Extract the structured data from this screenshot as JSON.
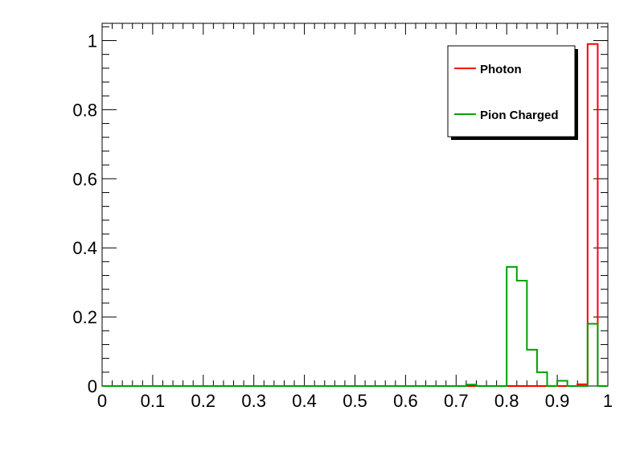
{
  "chart_data": {
    "type": "histogram",
    "bin_width": 0.02,
    "xlim": [
      0,
      1
    ],
    "ylim": [
      0,
      1.05
    ],
    "x_ticks": [
      "0",
      "0.1",
      "0.2",
      "0.3",
      "0.4",
      "0.5",
      "0.6",
      "0.7",
      "0.8",
      "0.9",
      "1"
    ],
    "y_ticks": [
      "0",
      "0.2",
      "0.4",
      "0.6",
      "0.8",
      "1"
    ],
    "grid": false,
    "legend_position": "top-right",
    "series": [
      {
        "name": "Photon",
        "color": "#ff0000",
        "values": [
          0,
          0,
          0,
          0,
          0,
          0,
          0,
          0,
          0,
          0,
          0,
          0,
          0,
          0,
          0,
          0,
          0,
          0,
          0,
          0,
          0,
          0,
          0,
          0,
          0,
          0,
          0,
          0,
          0,
          0,
          0,
          0,
          0,
          0,
          0,
          0,
          0,
          0,
          0,
          0,
          0,
          0,
          0,
          0,
          0,
          0,
          0,
          0.005,
          0.99,
          0
        ]
      },
      {
        "name": "Pion Charged",
        "color": "#00a000",
        "values": [
          0,
          0,
          0,
          0,
          0,
          0,
          0,
          0,
          0,
          0,
          0,
          0,
          0,
          0,
          0,
          0,
          0,
          0,
          0,
          0,
          0,
          0,
          0,
          0,
          0,
          0,
          0,
          0,
          0,
          0,
          0,
          0,
          0,
          0,
          0,
          0,
          0.004,
          0,
          0,
          0,
          0.345,
          0.305,
          0.105,
          0.04,
          0,
          0.015,
          0,
          0,
          0.18,
          0
        ]
      }
    ]
  }
}
